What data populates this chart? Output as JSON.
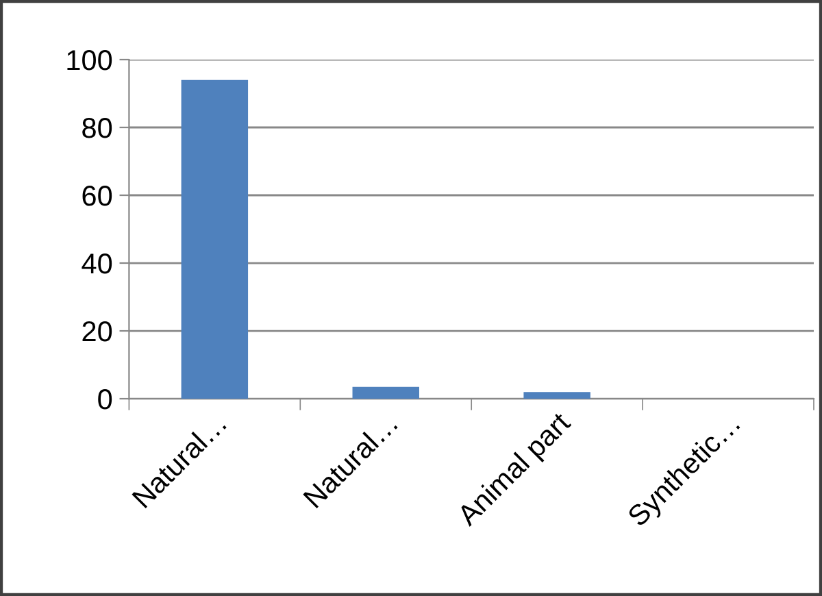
{
  "chart_data": {
    "type": "bar",
    "categories": [
      "Natural…",
      "Natural…",
      "Animal part",
      "Synthetic…"
    ],
    "values": [
      94,
      3.5,
      2,
      0
    ],
    "color": "#4f81bd",
    "ylim": [
      0,
      100
    ],
    "yticks": [
      0,
      20,
      40,
      60,
      80,
      100
    ],
    "grid": "y"
  }
}
